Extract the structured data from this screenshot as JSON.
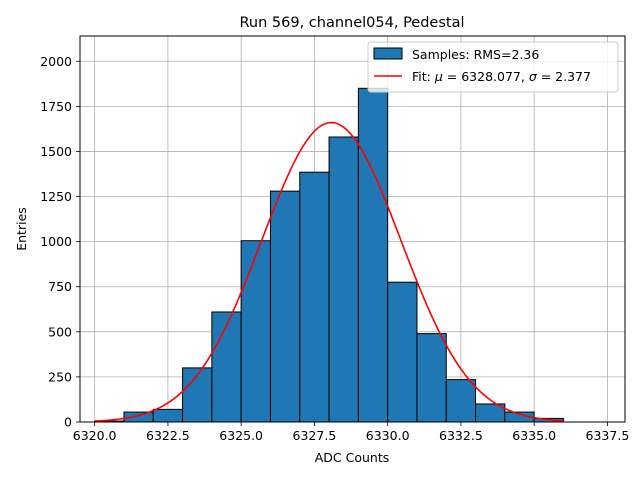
{
  "chart_data": {
    "type": "bar",
    "title": "Run 569, channel054, Pedestal",
    "xlabel": "ADC Counts",
    "ylabel": "Entries",
    "xlim": [
      6319.5,
      6338.1
    ],
    "ylim": [
      0,
      2140
    ],
    "x_ticks": [
      6320.0,
      6322.5,
      6325.0,
      6327.5,
      6330.0,
      6332.5,
      6335.0,
      6337.5
    ],
    "x_tick_labels": [
      "6320.0",
      "6322.5",
      "6325.0",
      "6327.5",
      "6330.0",
      "6332.5",
      "6335.0",
      "6337.5"
    ],
    "y_ticks": [
      0,
      250,
      500,
      750,
      1000,
      1250,
      1500,
      1750,
      2000
    ],
    "y_tick_labels": [
      "0",
      "250",
      "500",
      "750",
      "1000",
      "1250",
      "1500",
      "1750",
      "2000"
    ],
    "grid": true,
    "bin_edges": [
      6320,
      6321,
      6322,
      6323,
      6324,
      6325,
      6326,
      6327,
      6328,
      6329,
      6330,
      6331,
      6332,
      6333,
      6334,
      6335,
      6336
    ],
    "series": [
      {
        "name": "Samples: RMS=2.36",
        "kind": "histogram",
        "color": "#1f77b4",
        "edgecolor": "#000000",
        "values": [
          5,
          55,
          70,
          300,
          610,
          1005,
          1280,
          1385,
          1580,
          1850,
          775,
          490,
          235,
          100,
          55,
          20
        ]
      },
      {
        "name": "Fit: μ = 6328.077, σ = 2.377",
        "kind": "gaussian_fit",
        "color": "#ff0000",
        "mu": 6328.077,
        "sigma": 2.377,
        "amplitude": 1660,
        "x_range": [
          6320,
          6336
        ]
      }
    ],
    "legend": {
      "position": "top-right",
      "entries": [
        {
          "text_plain": "Samples: RMS=2.36"
        },
        {
          "text_prefix": "Fit: ",
          "mu_symbol": "μ",
          "mu_text": " = 6328.077, ",
          "sigma_symbol": "σ",
          "sigma_text": " = 2.377"
        }
      ]
    }
  }
}
